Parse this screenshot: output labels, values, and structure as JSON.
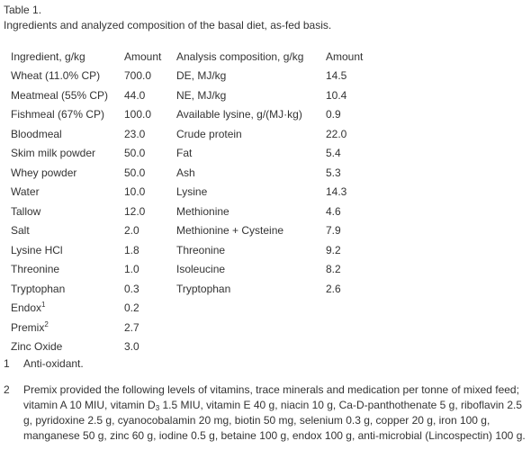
{
  "table": {
    "label": "Table 1.",
    "caption": "Ingredients and analyzed composition of the basal diet, as-fed basis.",
    "headers": [
      "Ingredient, g/kg",
      "Amount",
      "Analysis composition, g/kg",
      "Amount"
    ],
    "rows": [
      {
        "ingredient": "Wheat (11.0% CP)",
        "amount": "700.0",
        "analysis": "DE, MJ/kg",
        "analysis_amount": "14.5"
      },
      {
        "ingredient": "Meatmeal (55% CP)",
        "amount": "44.0",
        "analysis": "NE, MJ/kg",
        "analysis_amount": "10.4"
      },
      {
        "ingredient": "Fishmeal (67% CP)",
        "amount": "100.0",
        "analysis": "Available lysine, g/(MJ·kg)",
        "analysis_amount": "0.9"
      },
      {
        "ingredient": "Bloodmeal",
        "amount": "23.0",
        "analysis": "Crude protein",
        "analysis_amount": "22.0"
      },
      {
        "ingredient": "Skim milk powder",
        "amount": "50.0",
        "analysis": "Fat",
        "analysis_amount": "5.4"
      },
      {
        "ingredient": "Whey powder",
        "amount": "50.0",
        "analysis": "Ash",
        "analysis_amount": "5.3"
      },
      {
        "ingredient": "Water",
        "amount": "10.0",
        "analysis": "Lysine",
        "analysis_amount": "14.3"
      },
      {
        "ingredient": "Tallow",
        "amount": "12.0",
        "analysis": "Methionine",
        "analysis_amount": "4.6"
      },
      {
        "ingredient": "Salt",
        "amount": "2.0",
        "analysis": "Methionine + Cysteine",
        "analysis_amount": "7.9"
      },
      {
        "ingredient": "Lysine HCl",
        "amount": "1.8",
        "analysis": "Threonine",
        "analysis_amount": "9.2"
      },
      {
        "ingredient": "Threonine",
        "amount": "1.0",
        "analysis": "Isoleucine",
        "analysis_amount": "8.2"
      },
      {
        "ingredient": "Tryptophan",
        "amount": "0.3",
        "analysis": "Tryptophan",
        "analysis_amount": "2.6"
      },
      {
        "ingredient": "Endox",
        "sup": "1",
        "amount": "0.2",
        "analysis": "",
        "analysis_amount": ""
      },
      {
        "ingredient": "Premix",
        "sup": "2",
        "amount": "2.7",
        "analysis": "",
        "analysis_amount": ""
      },
      {
        "ingredient": "Zinc Oxide",
        "amount": "3.0",
        "analysis": "",
        "analysis_amount": ""
      }
    ]
  },
  "footnotes": {
    "fn1": {
      "num": "1",
      "text": "Anti-oxidant."
    },
    "fn2": {
      "num": "2",
      "part1": "Premix provided the following levels of vitamins, trace minerals and medication per tonne of mixed feed; vitamin A 10 MIU, vitamin D",
      "sub": "3",
      "part2": " 1.5 MIU, vitamin E 40 g, niacin 10 g, Ca-D-panthothenate 5 g, riboflavin 2.5 g, pyridoxine 2.5 g, cyanocobalamin 20 mg, biotin 50 mg, selenium 0.3 g, copper 20 g, iron 100 g, manganese 50 g, zinc 60 g, iodine 0.5 g, betaine 100 g, endox 100 g, anti-microbial (Lincospectin) 100 g."
    }
  }
}
